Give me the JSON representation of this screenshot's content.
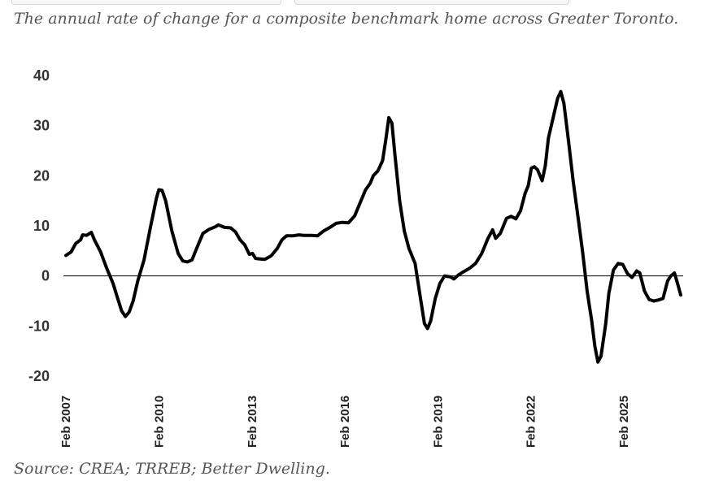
{
  "page": {
    "title": "The annual rate of change for a composite benchmark home across Greater Toronto.",
    "source": "Source: CREA; TRREB; Better Dwelling."
  },
  "colors": {
    "line": "#000000",
    "zero_line": "#000000",
    "text": "#555555",
    "ticks": "#333333"
  },
  "chart_data": {
    "type": "line",
    "title": "The annual rate of change for a composite benchmark home across Greater Toronto.",
    "xlabel": "",
    "ylabel": "",
    "ylim": [
      -20,
      40
    ],
    "yticks": [
      40,
      30,
      20,
      10,
      0,
      -10,
      -20
    ],
    "yticklabels": [
      "40",
      "30",
      "20",
      "10",
      "0",
      "-10",
      "-20"
    ],
    "xticks": [
      "Feb 2007",
      "Feb 2010",
      "Feb 2013",
      "Feb 2016",
      "Feb 2019",
      "Feb 2022",
      "Feb 2025"
    ],
    "xticks_t": [
      2007.083,
      2010.083,
      2013.083,
      2016.083,
      2019.083,
      2022.083,
      2025.083
    ],
    "grid": false,
    "zero_line": true,
    "legend": "none",
    "series": [
      {
        "name": "",
        "points": [
          [
            2007.08,
            4.1
          ],
          [
            2007.25,
            4.8
          ],
          [
            2007.4,
            6.5
          ],
          [
            2007.55,
            7.2
          ],
          [
            2007.62,
            8.2
          ],
          [
            2007.75,
            8.1
          ],
          [
            2007.9,
            8.7
          ],
          [
            2008.0,
            7.2
          ],
          [
            2008.2,
            4.8
          ],
          [
            2008.4,
            1.5
          ],
          [
            2008.6,
            -1.5
          ],
          [
            2008.75,
            -4.5
          ],
          [
            2008.88,
            -7.0
          ],
          [
            2009.0,
            -8.1
          ],
          [
            2009.12,
            -7.2
          ],
          [
            2009.25,
            -5.0
          ],
          [
            2009.4,
            -1.0
          ],
          [
            2009.6,
            3.2
          ],
          [
            2009.8,
            9.5
          ],
          [
            2010.0,
            15.5
          ],
          [
            2010.08,
            17.2
          ],
          [
            2010.18,
            17.1
          ],
          [
            2010.3,
            15.0
          ],
          [
            2010.5,
            9.0
          ],
          [
            2010.7,
            4.5
          ],
          [
            2010.85,
            3.0
          ],
          [
            2011.0,
            2.8
          ],
          [
            2011.15,
            3.2
          ],
          [
            2011.3,
            5.5
          ],
          [
            2011.5,
            8.5
          ],
          [
            2011.7,
            9.3
          ],
          [
            2011.9,
            9.8
          ],
          [
            2012.0,
            10.2
          ],
          [
            2012.2,
            9.7
          ],
          [
            2012.4,
            9.6
          ],
          [
            2012.55,
            8.8
          ],
          [
            2012.7,
            7.2
          ],
          [
            2012.85,
            6.2
          ],
          [
            2013.0,
            4.3
          ],
          [
            2013.1,
            4.5
          ],
          [
            2013.2,
            3.5
          ],
          [
            2013.35,
            3.4
          ],
          [
            2013.5,
            3.3
          ],
          [
            2013.7,
            4.0
          ],
          [
            2013.9,
            5.5
          ],
          [
            2014.05,
            7.2
          ],
          [
            2014.2,
            8.0
          ],
          [
            2014.4,
            8.0
          ],
          [
            2014.6,
            8.2
          ],
          [
            2014.75,
            8.1
          ],
          [
            2015.0,
            8.1
          ],
          [
            2015.2,
            8.0
          ],
          [
            2015.4,
            9.0
          ],
          [
            2015.6,
            9.7
          ],
          [
            2015.8,
            10.5
          ],
          [
            2016.0,
            10.7
          ],
          [
            2016.2,
            10.6
          ],
          [
            2016.4,
            12.0
          ],
          [
            2016.6,
            15.0
          ],
          [
            2016.75,
            17.2
          ],
          [
            2016.9,
            18.5
          ],
          [
            2017.0,
            20.0
          ],
          [
            2017.15,
            21.0
          ],
          [
            2017.3,
            23.0
          ],
          [
            2017.4,
            27.0
          ],
          [
            2017.5,
            31.6
          ],
          [
            2017.6,
            30.5
          ],
          [
            2017.7,
            24.0
          ],
          [
            2017.85,
            15.0
          ],
          [
            2018.0,
            9.0
          ],
          [
            2018.15,
            5.5
          ],
          [
            2018.35,
            2.5
          ],
          [
            2018.5,
            -3.5
          ],
          [
            2018.65,
            -9.5
          ],
          [
            2018.75,
            -10.5
          ],
          [
            2018.85,
            -9.0
          ],
          [
            2019.0,
            -4.5
          ],
          [
            2019.15,
            -1.5
          ],
          [
            2019.3,
            0.0
          ],
          [
            2019.5,
            -0.2
          ],
          [
            2019.6,
            -0.6
          ],
          [
            2019.75,
            0.2
          ],
          [
            2019.9,
            0.8
          ],
          [
            2020.1,
            1.5
          ],
          [
            2020.3,
            2.5
          ],
          [
            2020.5,
            4.5
          ],
          [
            2020.7,
            7.5
          ],
          [
            2020.85,
            9.2
          ],
          [
            2020.95,
            7.5
          ],
          [
            2021.1,
            8.5
          ],
          [
            2021.3,
            11.5
          ],
          [
            2021.45,
            11.9
          ],
          [
            2021.6,
            11.4
          ],
          [
            2021.75,
            13.0
          ],
          [
            2021.9,
            16.5
          ],
          [
            2022.0,
            18.0
          ],
          [
            2022.1,
            21.5
          ],
          [
            2022.2,
            21.8
          ],
          [
            2022.3,
            21.2
          ],
          [
            2022.45,
            19.0
          ],
          [
            2022.55,
            22.0
          ],
          [
            2022.65,
            27.5
          ],
          [
            2022.8,
            31.5
          ],
          [
            2022.95,
            35.5
          ],
          [
            2023.05,
            36.8
          ],
          [
            2023.15,
            34.5
          ],
          [
            2023.3,
            27.0
          ],
          [
            2023.45,
            19.0
          ],
          [
            2023.6,
            12.0
          ],
          [
            2023.75,
            5.0
          ],
          [
            2023.9,
            -3.0
          ],
          [
            2024.05,
            -9.0
          ],
          [
            2024.15,
            -14.0
          ],
          [
            2024.25,
            -17.2
          ],
          [
            2024.35,
            -16.0
          ],
          [
            2024.5,
            -9.5
          ],
          [
            2024.6,
            -3.5
          ],
          [
            2024.75,
            1.2
          ],
          [
            2024.9,
            2.5
          ],
          [
            2025.05,
            2.3
          ],
          [
            2025.2,
            0.5
          ],
          [
            2025.35,
            -0.3
          ],
          [
            2025.5,
            1.0
          ],
          [
            2025.6,
            0.6
          ],
          [
            2025.75,
            -3.0
          ],
          [
            2025.9,
            -4.7
          ],
          [
            2026.05,
            -5.0
          ],
          [
            2026.2,
            -4.8
          ],
          [
            2026.35,
            -4.5
          ],
          [
            2026.5,
            -1.0
          ],
          [
            2026.6,
            0.0
          ],
          [
            2026.72,
            0.6
          ],
          [
            2026.82,
            -1.5
          ],
          [
            2026.92,
            -3.8
          ]
        ]
      }
    ]
  }
}
